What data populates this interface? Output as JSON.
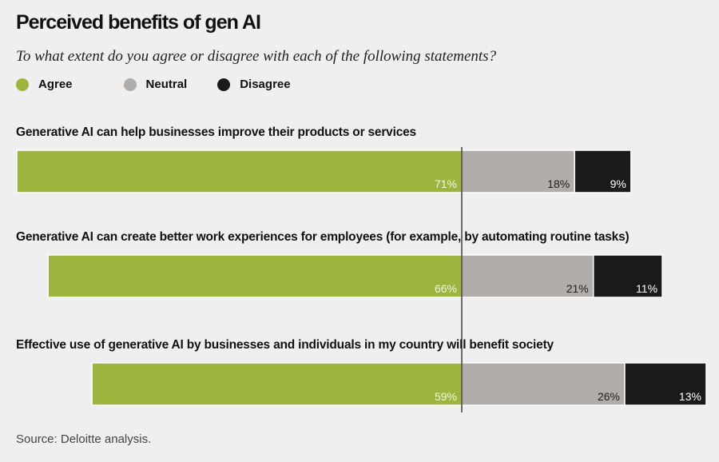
{
  "chart_data": {
    "type": "bar",
    "orientation": "horizontal-diverging-stacked",
    "title": "Perceived benefits of gen AI",
    "subtitle": "To what extent do you agree or disagree with each of the following statements?",
    "legend": [
      "Agree",
      "Neutral",
      "Disagree"
    ],
    "legend_placement": "top-left",
    "colors": {
      "Agree": "#9db43e",
      "Neutral": "#b0adaa",
      "Disagree": "#1a1a1a"
    },
    "categories": [
      "Generative AI can help businesses improve their products or services",
      "Generative AI can create better work experiences for employees (for example, by automating routine tasks)",
      "Effective use of generative AI by businesses and individuals in my country will benefit society"
    ],
    "series": [
      {
        "name": "Agree",
        "values": [
          71,
          66,
          59
        ]
      },
      {
        "name": "Neutral",
        "values": [
          18,
          21,
          26
        ]
      },
      {
        "name": "Disagree",
        "values": [
          9,
          11,
          13
        ]
      }
    ],
    "unit": "%",
    "grid": false,
    "source": "Source: Deloitte analysis."
  }
}
